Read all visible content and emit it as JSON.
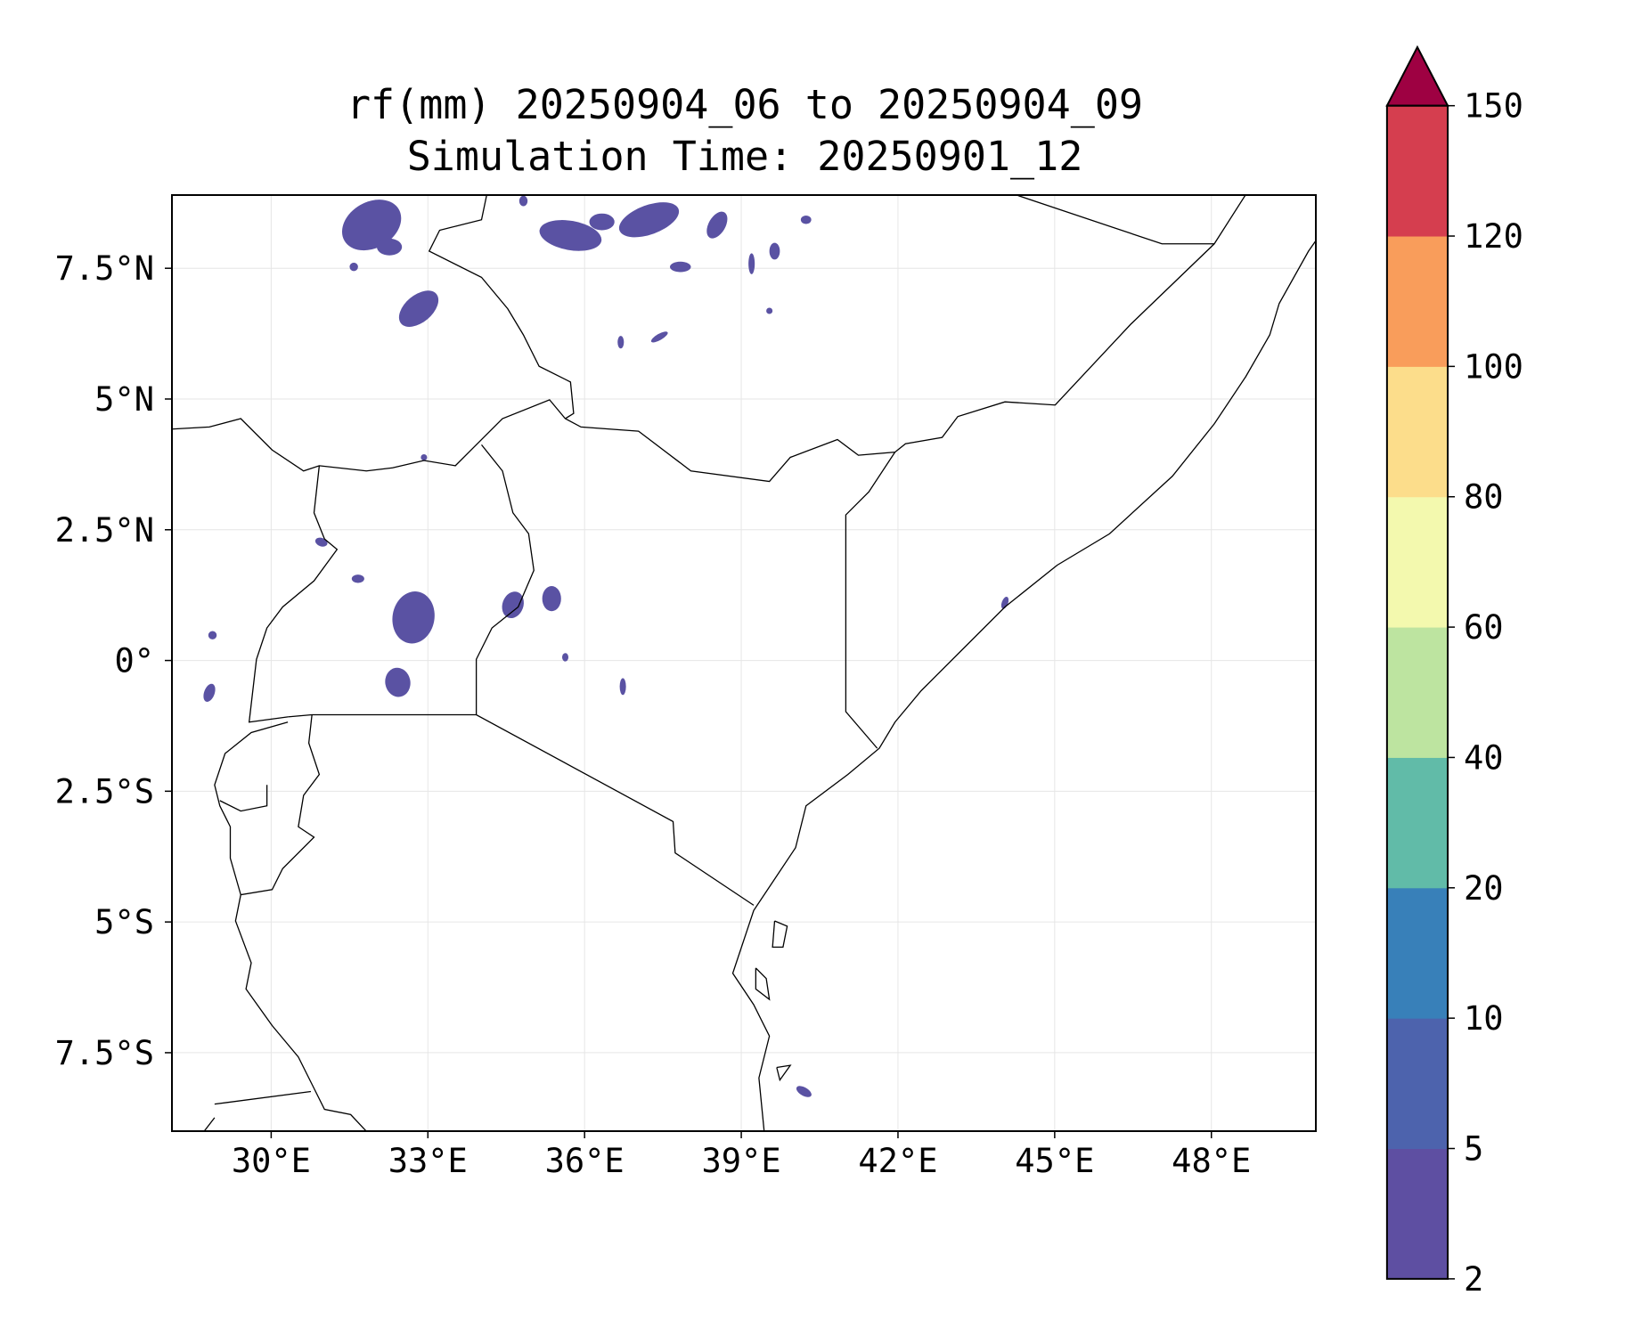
{
  "chart_data": {
    "type": "heatmap",
    "title": "rf(mm) 20250904_06 to 20250904_09",
    "subtitle": "Simulation Time: 20250901_12",
    "extent": {
      "lon": [
        28.1,
        50.0
      ],
      "lat": [
        -9.0,
        8.9
      ]
    },
    "x_ticks": [
      {
        "value": 30,
        "label": "30°E"
      },
      {
        "value": 33,
        "label": "33°E"
      },
      {
        "value": 36,
        "label": "36°E"
      },
      {
        "value": 39,
        "label": "39°E"
      },
      {
        "value": 42,
        "label": "42°E"
      },
      {
        "value": 45,
        "label": "45°E"
      },
      {
        "value": 48,
        "label": "48°E"
      }
    ],
    "y_ticks": [
      {
        "value": 7.5,
        "label": "7.5°N"
      },
      {
        "value": 5,
        "label": "5°N"
      },
      {
        "value": 2.5,
        "label": "2.5°N"
      },
      {
        "value": 0,
        "label": "0°"
      },
      {
        "value": -2.5,
        "label": "2.5°S"
      },
      {
        "value": -5,
        "label": "5°S"
      },
      {
        "value": -7.5,
        "label": "7.5°S"
      }
    ],
    "grid": true,
    "colorbar": {
      "levels": [
        "2",
        "5",
        "10",
        "20",
        "40",
        "60",
        "80",
        "100",
        "120",
        "150"
      ],
      "colors": [
        "#5e4fa2",
        "#4d63ad",
        "#3880b9",
        "#61bba8",
        "#bde4a0",
        "#f3f9ae",
        "#fcdd8b",
        "#f99d5b",
        "#d53e4f"
      ],
      "extend_color": "#9e0142",
      "extend": "max",
      "placement": "right"
    },
    "rain_cells_note_color": "#5a52a3"
  }
}
